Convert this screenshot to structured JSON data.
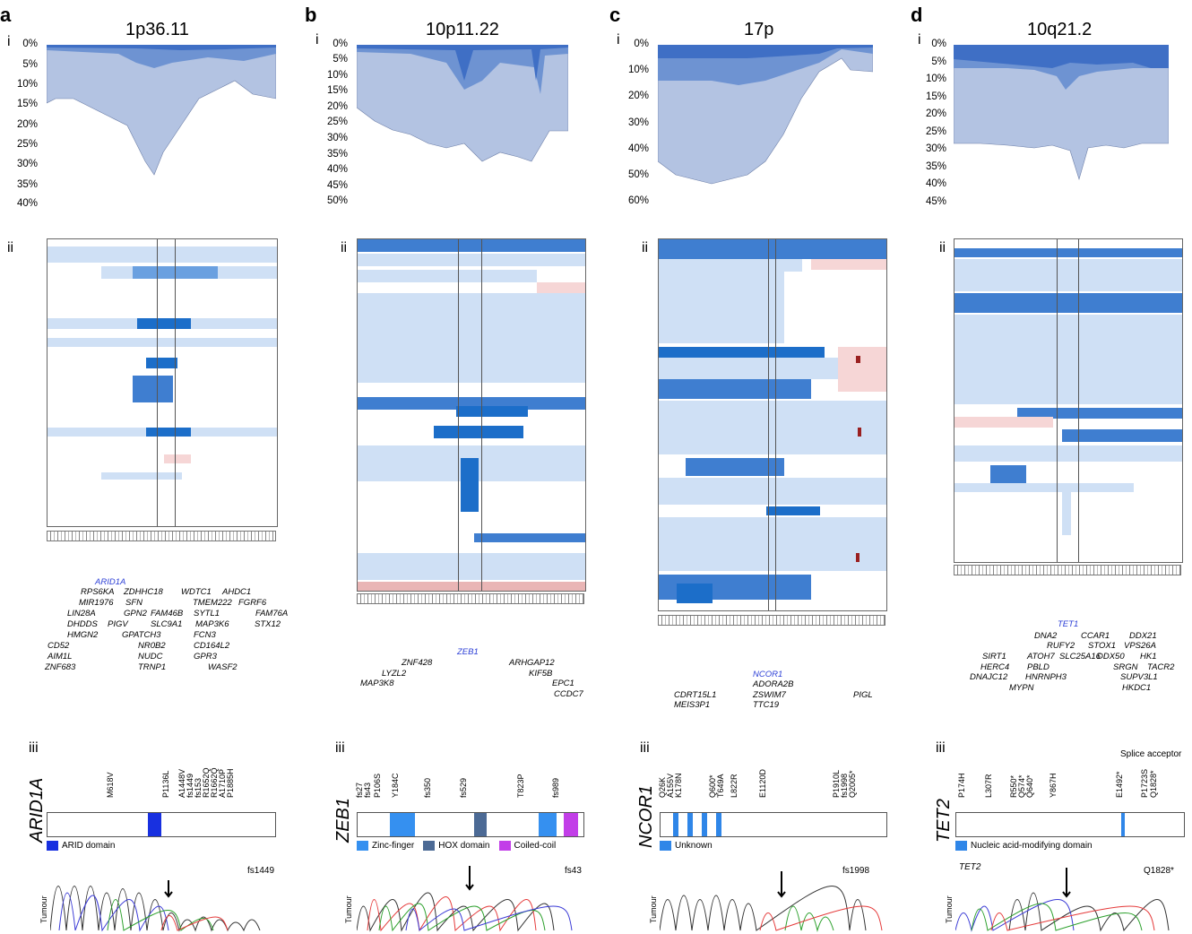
{
  "colors": {
    "light": "#b3c3e2",
    "mid": "#6e93d2",
    "dark": "#3f6fc5",
    "cellLight": "#cfe0f5",
    "cellMid": "#6aa0e0",
    "cellDark": "#1c6ec9",
    "pink": "#f6d6d6",
    "red": "#9a2020",
    "arid": "#1830e0",
    "zinc": "#3590f0",
    "hox": "#4c6a95",
    "coil": "#c23ee8",
    "unknown": "#2f86e8",
    "nucleic": "#2f86e8"
  },
  "panels": [
    {
      "label": "a",
      "title": "1p36.11",
      "roman": [
        "i",
        "ii",
        "iii"
      ],
      "ticks": [
        "0%",
        "5%",
        "10%",
        "15%",
        "20%",
        "25%",
        "30%",
        "35%",
        "40%"
      ],
      "highlight_gene": "ARID1A",
      "genes": [
        "RPS6KA",
        "ZDHHC18",
        "WDTC1",
        "AHDC1",
        "MIR1976",
        "SFN",
        "TMEM222",
        "FGRF6",
        "LIN28A",
        "GPN2",
        "FAM46B",
        "SYTL1",
        "FAM76A",
        "DHDDS",
        "PIGV",
        "SLC9A1",
        "MAP3K6",
        "STX12",
        "HMGN2",
        "GPATCH3",
        "FCN3",
        "CD52",
        "NR0B2",
        "CD164L2",
        "AIM1L",
        "NUDC",
        "GPR3",
        "ZNF683",
        "TRNP1",
        "WASF2"
      ],
      "protein": "ARID1A",
      "mutations": [
        "M618V",
        "P1136L",
        "A1448V",
        "fs1449",
        "fs153",
        "R1652Q",
        "R1662Q",
        "A1710P",
        "P1885H"
      ],
      "legend": [
        {
          "name": "ARID domain",
          "color": "#1830e0"
        }
      ],
      "trace_label": "fs1449",
      "trace_sub": "",
      "tumour": "Tumour"
    },
    {
      "label": "b",
      "title": "10p11.22",
      "roman": [
        "i",
        "ii",
        "iii"
      ],
      "ticks": [
        "0%",
        "5%",
        "10%",
        "15%",
        "20%",
        "25%",
        "30%",
        "35%",
        "40%",
        "45%",
        "50%"
      ],
      "highlight_gene": "ZEB1",
      "genes": [
        "ZNF428",
        "ARHGAP12",
        "LYZL2",
        "KIF5B",
        "MAP3K8",
        "EPC1",
        "CCDC7"
      ],
      "protein": "ZEB1",
      "mutations": [
        "fs27",
        "fs43",
        "P106S",
        "Y184C",
        "fs350",
        "fs529",
        "T823P",
        "fs989"
      ],
      "legend": [
        {
          "name": "Zinc-finger",
          "color": "#3590f0"
        },
        {
          "name": "HOX domain",
          "color": "#4c6a95"
        },
        {
          "name": "Coiled-coil",
          "color": "#c23ee8"
        }
      ],
      "trace_label": "fs43",
      "trace_sub": "",
      "tumour": "Tumour"
    },
    {
      "label": "c",
      "title": "17p",
      "roman": [
        "i",
        "ii",
        "iii"
      ],
      "ticks": [
        "0%",
        "10%",
        "20%",
        "30%",
        "40%",
        "50%",
        "60%"
      ],
      "highlight_gene": "NCOR1",
      "genes": [
        "ADORA2B",
        "ZSWIM7",
        "TTC19",
        "CDRT15L1",
        "MEIS3P1",
        "PIGL"
      ],
      "protein": "NCOR1",
      "mutations": [
        "Q26K",
        "A155V",
        "K178N",
        "Q600*",
        "T649A",
        "L822R",
        "E1120D",
        "P1910L",
        "fs1998",
        "Q2005*"
      ],
      "legend": [
        {
          "name": "Unknown",
          "color": "#2f86e8"
        }
      ],
      "trace_label": "fs1998",
      "trace_sub": "",
      "tumour": "Tumour"
    },
    {
      "label": "d",
      "title": "10q21.2",
      "roman": [
        "i",
        "ii",
        "iii"
      ],
      "ticks": [
        "0%",
        "5%",
        "10%",
        "15%",
        "20%",
        "25%",
        "30%",
        "35%",
        "40%",
        "45%"
      ],
      "highlight_gene": "TET1",
      "genes": [
        "DNA2",
        "CCAR1",
        "DDX21",
        "RUFY2",
        "STOX1",
        "VPS26A",
        "SIRT1",
        "ATOH7",
        "SLC25A16",
        "DDX50",
        "HK1",
        "HERC4",
        "PBLD",
        "SRGN",
        "TACR2",
        "DNAJC12",
        "HNRNPH3",
        "SUPV3L1",
        "MYPN",
        "HKDC1"
      ],
      "protein": "TET2",
      "mutations": [
        "P174H",
        "L307R",
        "R550*",
        "Q574*",
        "Q640*",
        "Y867H",
        "E1492*",
        "P1723S",
        "Q1828*"
      ],
      "extra_label": "Splice acceptor",
      "legend": [
        {
          "name": "Nucleic acid-modifying domain",
          "color": "#2f86e8"
        }
      ],
      "trace_label": "Q1828*",
      "trace_sub": "TET2",
      "tumour": "Tumour"
    }
  ]
}
